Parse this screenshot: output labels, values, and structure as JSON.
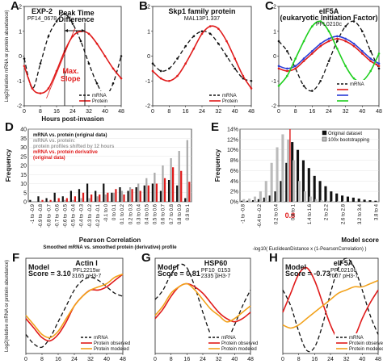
{
  "chart_data": [
    {
      "panel": "A",
      "type": "line",
      "title": "EXP-2",
      "subtitle": "PF14_0678",
      "ylabel": "Log2(relative mRNA or protein abundance)",
      "xlabel": "Hours post-invasion",
      "xlim": [
        0,
        48
      ],
      "ylim": [
        -2,
        2
      ],
      "xticks": [
        0,
        8,
        16,
        24,
        32,
        40,
        48
      ],
      "yticks": [
        -2,
        -1,
        0,
        1,
        2
      ],
      "annotations": {
        "peak_time": "Peak Time",
        "difference": "Difference",
        "max": "Max.",
        "slope": "Slope"
      },
      "legend": [
        "mRNA",
        "Protein"
      ],
      "legend_position": "bottom-right",
      "series": [
        {
          "name": "mRNA",
          "style": "dashed",
          "color": "#111111",
          "x": [
            0,
            4,
            8,
            12,
            16,
            20,
            24,
            28,
            32,
            36,
            40,
            44,
            48
          ],
          "y": [
            -0.1,
            -1.3,
            -0.3,
            0.8,
            1.4,
            1.7,
            1.3,
            0.6,
            -0.3,
            -1.1,
            -1.6,
            -1.1,
            0.0
          ]
        },
        {
          "name": "Protein",
          "style": "solid",
          "color": "#e01b1b",
          "x": [
            0,
            4,
            8,
            12,
            16,
            20,
            24,
            28,
            32,
            36,
            40,
            44,
            48
          ],
          "y": [
            -0.4,
            -1.3,
            -1.5,
            -1.3,
            -0.6,
            0.2,
            0.8,
            1.0,
            0.9,
            0.5,
            0.0,
            -0.5,
            -0.9
          ]
        }
      ]
    },
    {
      "panel": "B",
      "type": "line",
      "title": "Skp1 family protein",
      "subtitle": "MAL13P1.337",
      "xlim": [
        0,
        48
      ],
      "ylim": [
        -2,
        2
      ],
      "xticks": [
        0,
        8,
        16,
        24,
        32,
        40,
        48
      ],
      "yticks": [
        -2,
        -1,
        0,
        1,
        2
      ],
      "legend": [
        "mRNA",
        "Protein"
      ],
      "legend_position": "bottom-right",
      "series": [
        {
          "name": "mRNA",
          "style": "dashed",
          "color": "#111111",
          "x": [
            0,
            4,
            8,
            12,
            16,
            20,
            24,
            28,
            32,
            36,
            40,
            44,
            48
          ],
          "y": [
            -0.3,
            -0.6,
            -0.5,
            -0.1,
            0.4,
            0.8,
            1.0,
            0.9,
            0.5,
            0.0,
            -0.5,
            -0.9,
            -1.0
          ]
        },
        {
          "name": "Protein",
          "style": "solid",
          "color": "#e01b1b",
          "x": [
            0,
            4,
            8,
            12,
            16,
            20,
            24,
            28,
            32,
            36,
            40,
            44,
            48
          ],
          "y": [
            -0.6,
            -0.9,
            -1.0,
            -0.8,
            -0.3,
            0.3,
            0.9,
            1.2,
            1.1,
            0.6,
            -0.1,
            -0.8,
            -1.3
          ]
        }
      ]
    },
    {
      "panel": "C",
      "type": "line",
      "title": "eIF5A",
      "title_extra": "(eukaryotic Initiation Factor)",
      "subtitle": "PFL0210c",
      "xlim": [
        0,
        48
      ],
      "ylim": [
        -2,
        2
      ],
      "xticks": [
        0,
        8,
        16,
        24,
        32,
        40,
        48
      ],
      "yticks": [
        -2,
        -1,
        0,
        1,
        2
      ],
      "legend": [
        "mRNA",
        "",
        "",
        ""
      ],
      "legend_position": "bottom-right",
      "series": [
        {
          "name": "mRNA",
          "style": "dashed",
          "color": "#111111",
          "x": [
            0,
            4,
            8,
            12,
            16,
            20,
            24,
            28,
            32,
            36,
            40,
            44,
            48
          ],
          "y": [
            0.6,
            0.2,
            -0.5,
            -1.2,
            -1.4,
            -1.0,
            -0.2,
            0.6,
            1.2,
            1.4,
            1.0,
            0.2,
            -0.5
          ]
        },
        {
          "name": "",
          "style": "solid",
          "color": "#e01b1b",
          "x": [
            0,
            4,
            8,
            12,
            16,
            20,
            24,
            28,
            32,
            36,
            40,
            44,
            48
          ],
          "y": [
            -0.5,
            -0.6,
            -0.5,
            -0.2,
            0.1,
            0.4,
            0.6,
            0.7,
            0.6,
            0.4,
            0.1,
            -0.2,
            -0.4
          ]
        },
        {
          "name": "",
          "style": "solid",
          "color": "#2a3bd6",
          "x": [
            0,
            4,
            8,
            12,
            16,
            20,
            24,
            28,
            32,
            36,
            40,
            44,
            48
          ],
          "y": [
            -0.4,
            -0.5,
            -0.4,
            -0.1,
            0.2,
            0.5,
            0.7,
            0.8,
            0.7,
            0.5,
            0.2,
            -0.1,
            -0.3
          ]
        },
        {
          "name": "",
          "style": "solid",
          "color": "#1fcf1f",
          "x": [
            0,
            4,
            8,
            12,
            16,
            20,
            24,
            28,
            32,
            36,
            40,
            44,
            48
          ],
          "y": [
            -1.2,
            -0.8,
            -0.1,
            0.6,
            1.2,
            1.4,
            1.0,
            0.3,
            -0.4,
            -0.9,
            -1.0,
            -0.6,
            0.1
          ]
        }
      ]
    },
    {
      "panel": "D",
      "type": "bar",
      "ylabel": "Frequency",
      "xlabel": "Pearson Correlation",
      "xlabel2": "Smoothed mRNA vs. smoothed protein (derivative) profile",
      "ylim": [
        0,
        40
      ],
      "yticks": [
        0,
        5,
        10,
        15,
        20,
        25,
        30,
        35,
        40
      ],
      "categories": [
        "-1 to -0.9",
        "-0.9 to -0.8",
        "-0.8 to -0.7",
        "-0.7 to -0.6",
        "-0.6 to -0.5",
        "-0.5 to -0.4",
        "-0.4 to -0.3",
        "-0.3 to -0.2",
        "-0.2 to -0.1",
        "-0.1 to 0",
        "0 to 0.1",
        "0.1 to 0.2",
        "0.2 to 0.3",
        "0.3 to 0.4",
        "0.4 to 0.5",
        "0.5 to 0.6",
        "0.6 to 0.7",
        "0.7 to 0.8",
        "0.8 to 0.9",
        "0.9 to 1"
      ],
      "legend_text": [
        "mRNA vs. protein (original data)",
        "mRNA vs. protein:",
        "protein profiles shifted by 12 hours",
        "mRNA vs. protein derivative",
        "(original data)"
      ],
      "series": [
        {
          "name": "mRNA vs. protein (original data)",
          "color": "#111111",
          "values": [
            1,
            3,
            2,
            5,
            3,
            6,
            7,
            10,
            6,
            10,
            5,
            8,
            6,
            8,
            9,
            10,
            6,
            12,
            9,
            2
          ]
        },
        {
          "name": "mRNA vs. protein: protein profiles shifted by 12 hours",
          "color": "#aaaaaa",
          "values": [
            0,
            0,
            0,
            0,
            1,
            1,
            2,
            2,
            3,
            4,
            5,
            6,
            8,
            10,
            13,
            16,
            20,
            24,
            28,
            34
          ]
        },
        {
          "name": "mRNA vs. protein derivative (original data)",
          "color": "#e01b1b",
          "values": [
            0,
            1,
            1,
            2,
            2,
            3,
            5,
            4,
            4,
            5,
            7,
            4,
            7,
            6,
            9,
            10,
            13,
            19,
            17,
            11
          ]
        }
      ]
    },
    {
      "panel": "E",
      "type": "bar",
      "ylabel": "Frequency",
      "xlabel": "Model score",
      "xlabel2": "-log10( EuclideanDistance x (1-PearsonCorrelation) )",
      "ylim": [
        0,
        14
      ],
      "yticks": [
        "0%",
        "2%",
        "4%",
        "6%",
        "8%",
        "10%",
        "12%",
        "14%"
      ],
      "threshold_label": "0.8",
      "threshold": 0.8,
      "xtick_labels": [
        "-1 to -0.8",
        "-0.4 to -0.2",
        "0.2 to 0.4",
        "0.8 to 1",
        "1.4 to 1.6",
        "2 to 2.2",
        "2.6 to 2.8",
        "3.2 to 3.4",
        "3.8 to 4"
      ],
      "legend": [
        "Original dataset",
        "100x bootstrapping"
      ],
      "legend_position": "top-right",
      "bin_starts": [
        -1.0,
        -0.8,
        -0.6,
        -0.4,
        -0.2,
        0.0,
        0.2,
        0.4,
        0.6,
        0.8,
        1.0,
        1.2,
        1.4,
        1.6,
        1.8,
        2.0,
        2.2,
        2.4,
        2.6,
        2.8,
        3.0,
        3.2,
        3.4,
        3.6,
        3.8
      ],
      "series": [
        {
          "name": "Original dataset",
          "color": "#111111",
          "values": [
            0.2,
            0.2,
            0.3,
            0.5,
            0.8,
            1.2,
            2.0,
            4.0,
            7.5,
            11.5,
            10.0,
            8.0,
            6.5,
            5.0,
            4.0,
            3.0,
            2.0,
            1.6,
            1.2,
            1.0,
            0.8,
            0.6,
            0.4,
            0.3,
            0.2
          ]
        },
        {
          "name": "100x bootstrapping",
          "color": "#bbbbbb",
          "values": [
            0.5,
            0.6,
            1.0,
            2.0,
            4.0,
            7.5,
            10.5,
            13.0,
            12.0,
            8.0,
            4.0,
            2.0,
            1.0,
            0.5,
            0.3,
            0.2,
            0.1,
            0.1,
            0.1,
            0.0,
            0.0,
            0.0,
            0.0,
            0.0,
            0.0
          ]
        }
      ]
    },
    {
      "panel": "F",
      "type": "line",
      "title": "Actin I",
      "subtitle": "PFL2215w",
      "subtitle2": "3165 pH3-7",
      "model_label": "Model",
      "score_label": "Score = 3.10",
      "ylabel": "Log2(relative mRNA or protein abundance)",
      "xlabel": "Hours post-invasion",
      "xlim": [
        0,
        48
      ],
      "ylim": [
        -1.5,
        1.5
      ],
      "xticks": [
        0,
        8,
        16,
        24,
        32,
        40,
        48
      ],
      "legend": [
        "mRNA",
        "Protein observed",
        "Protein modeled"
      ],
      "legend_position": "bottom-right",
      "series": [
        {
          "name": "mRNA",
          "style": "dashed",
          "color": "#111111",
          "x": [
            0,
            4,
            8,
            12,
            16,
            20,
            24,
            28,
            32,
            36,
            40,
            44,
            48
          ],
          "y": [
            -0.9,
            -1.2,
            -1.3,
            -1.0,
            -0.5,
            0.0,
            0.5,
            0.8,
            0.9,
            0.8,
            0.6,
            0.4,
            0.3
          ]
        },
        {
          "name": "Protein observed",
          "style": "solid",
          "color": "#e01b1b",
          "x": [
            0,
            4,
            8,
            12,
            16,
            20,
            24,
            28,
            32,
            36,
            40,
            44,
            48
          ],
          "y": [
            -0.4,
            -0.7,
            -1.0,
            -1.1,
            -0.9,
            -0.5,
            0.0,
            0.3,
            0.5,
            0.5,
            0.6,
            0.8,
            1.0
          ]
        },
        {
          "name": "Protein modeled",
          "style": "solid",
          "color": "#f2a21c",
          "x": [
            0,
            4,
            8,
            12,
            16,
            20,
            24,
            28,
            32,
            36,
            40,
            44,
            48
          ],
          "y": [
            -0.3,
            -0.6,
            -0.9,
            -1.0,
            -0.8,
            -0.4,
            0.0,
            0.3,
            0.5,
            0.6,
            0.7,
            0.9,
            1.0
          ]
        }
      ]
    },
    {
      "panel": "G",
      "type": "line",
      "title": "HSP60",
      "subtitle": "PF10_0153",
      "subtitle2": "2335 pH3-7",
      "model_label": "Model",
      "score_label": "Score = 0.81",
      "xlim": [
        0,
        48
      ],
      "ylim": [
        -1.5,
        1.5
      ],
      "xticks": [
        0,
        8,
        16,
        24,
        32,
        40,
        48
      ],
      "legend": [
        "mRNA",
        "Protein observed",
        "Protein modeled"
      ],
      "legend_position": "bottom-right",
      "series": [
        {
          "name": "mRNA",
          "style": "dashed",
          "color": "#111111",
          "x": [
            0,
            4,
            8,
            12,
            16,
            20,
            24,
            28,
            32,
            36,
            40,
            44,
            48
          ],
          "y": [
            0.2,
            0.5,
            1.0,
            1.3,
            1.2,
            0.6,
            -0.2,
            -0.9,
            -1.2,
            -1.1,
            -0.6,
            0.0,
            0.5
          ]
        },
        {
          "name": "Protein observed",
          "style": "solid",
          "color": "#e01b1b",
          "x": [
            0,
            4,
            8,
            12,
            16,
            20,
            24,
            28,
            32,
            36,
            40,
            44,
            48
          ],
          "y": [
            -0.4,
            -0.1,
            0.3,
            0.6,
            0.7,
            0.6,
            0.4,
            0.1,
            -0.2,
            -0.4,
            -0.5,
            -0.4,
            -0.2
          ]
        },
        {
          "name": "Protein modeled",
          "style": "solid",
          "color": "#f2a21c",
          "x": [
            0,
            4,
            8,
            12,
            16,
            20,
            24,
            28,
            32,
            36,
            40,
            44,
            48
          ],
          "y": [
            -0.3,
            0.0,
            0.4,
            0.6,
            0.7,
            0.5,
            0.2,
            -0.1,
            -0.3,
            -0.5,
            -0.4,
            -0.2,
            0.0
          ]
        }
      ]
    },
    {
      "panel": "H",
      "type": "line",
      "title": "eIF5A",
      "subtitle": "PFL0210c",
      "subtitle2": "7007 pH3-7",
      "model_label": "Model",
      "score_label": "Score = -0.73",
      "xlim": [
        0,
        48
      ],
      "ylim": [
        -1.5,
        1.5
      ],
      "xticks": [
        0,
        8,
        16,
        24,
        32,
        40,
        48
      ],
      "legend": [
        "mRNA",
        "Protein observed",
        "Protein modeled"
      ],
      "legend_position": "bottom-right",
      "series": [
        {
          "name": "mRNA",
          "style": "dashed",
          "color": "#111111",
          "x": [
            0,
            4,
            8,
            12,
            16,
            20,
            24,
            28,
            32,
            36,
            40,
            44,
            48
          ],
          "y": [
            0.5,
            0.0,
            -0.8,
            -1.4,
            -1.3,
            -0.6,
            0.4,
            1.2,
            1.5,
            1.2,
            0.5,
            -0.3,
            -0.9
          ]
        },
        {
          "name": "Protein observed",
          "style": "solid",
          "color": "#e01b1b",
          "x": [
            0,
            4,
            8,
            12,
            16,
            20,
            24,
            28,
            32,
            36,
            40,
            44,
            48
          ],
          "y": [
            -0.2,
            0.4,
            1.0,
            1.2,
            0.8,
            0.1,
            -0.6,
            -1.1,
            -1.3,
            -1.0,
            -0.4,
            0.1,
            0.5
          ]
        },
        {
          "name": "Protein modeled",
          "style": "solid",
          "color": "#f2a21c",
          "x": [
            0,
            4,
            8,
            12,
            16,
            20,
            24,
            28,
            32,
            36,
            40,
            44,
            48
          ],
          "y": [
            -0.6,
            -0.7,
            -0.6,
            -0.4,
            -0.2,
            0.0,
            0.2,
            0.4,
            0.5,
            0.6,
            0.6,
            0.7,
            0.8
          ]
        }
      ]
    }
  ]
}
